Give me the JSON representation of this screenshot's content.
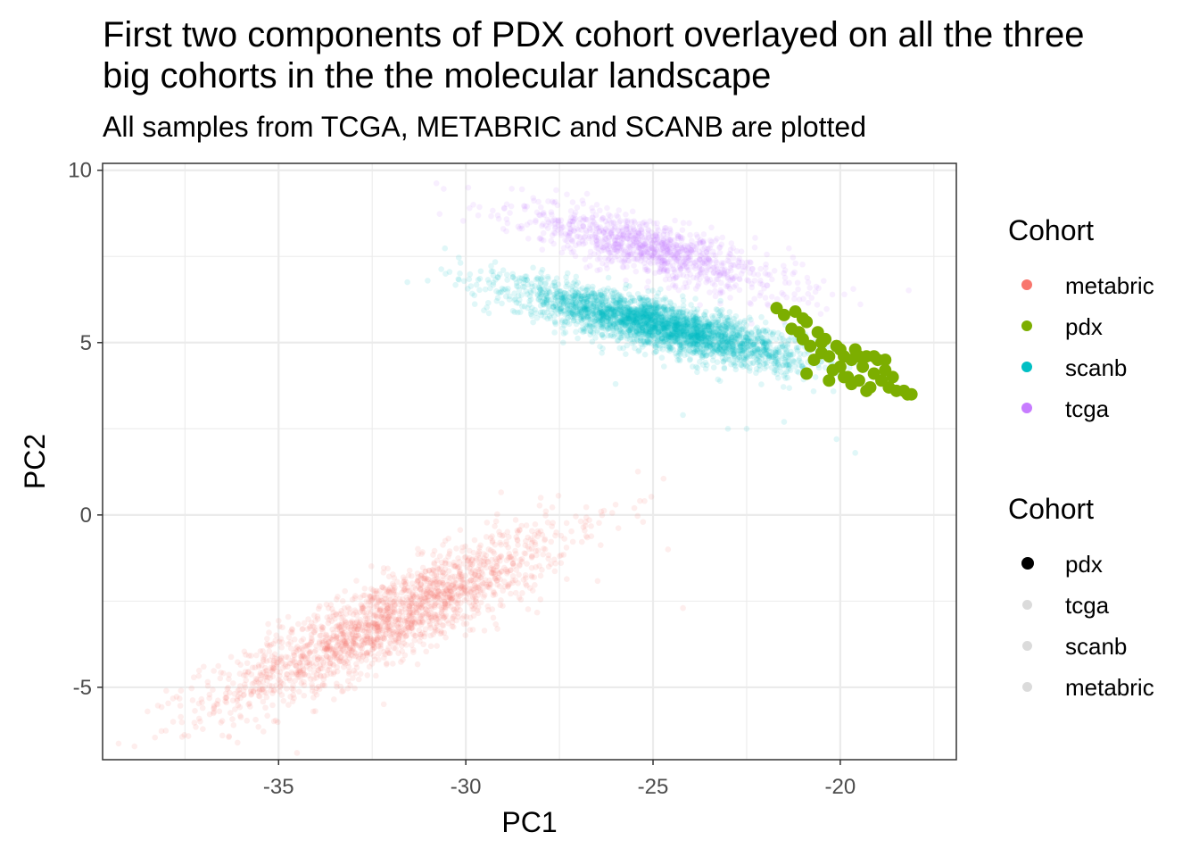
{
  "chart_data": {
    "type": "scatter",
    "title_lines": [
      "First two components of PDX cohort overlayed on all the three",
      "big cohorts in the the molecular landscape"
    ],
    "subtitle": "All samples from TCGA, METABRIC and SCANB are plotted",
    "xlabel": "PC1",
    "ylabel": "PC2",
    "xlim": [
      -39.7,
      -16.9
    ],
    "ylim": [
      -7.1,
      10.2
    ],
    "x_ticks": [
      -35,
      -30,
      -25,
      -20
    ],
    "y_ticks": [
      -5,
      0,
      5,
      10
    ],
    "grid": true,
    "theme": "bw",
    "legend_color": {
      "title": "Cohort",
      "entries": [
        {
          "label": "metabric",
          "color": "#F8766D"
        },
        {
          "label": "pdx",
          "color": "#7CAE00"
        },
        {
          "label": "scanb",
          "color": "#00BFC4"
        },
        {
          "label": "tcga",
          "color": "#C77CFF"
        }
      ]
    },
    "legend_alpha": {
      "title": "Cohort",
      "entries": [
        {
          "label": "pdx",
          "alpha": 1.0
        },
        {
          "label": "tcga",
          "alpha": 0.1
        },
        {
          "label": "scanb",
          "alpha": 0.1
        },
        {
          "label": "metabric",
          "alpha": 0.1
        }
      ]
    },
    "series": [
      {
        "name": "metabric",
        "color": "#F8766D",
        "alpha": 0.12,
        "size": "small",
        "cloud": {
          "n": 1900,
          "center": [
            -32.0,
            -3.0
          ],
          "sd_along": 2.6,
          "sd_across": 0.55,
          "direction": [
            1.0,
            0.52
          ]
        },
        "points": [
          [
            -38.5,
            -5.7
          ],
          [
            -37.0,
            -4.4
          ],
          [
            -36.5,
            -6.4
          ],
          [
            -38.0,
            -5.1
          ],
          [
            -26.0,
            0.3
          ],
          [
            -25.5,
            0.2
          ],
          [
            -24.6,
            -1.0
          ],
          [
            -24.2,
            -2.7
          ],
          [
            -28.0,
            0.5
          ],
          [
            -26.8,
            -0.2
          ]
        ]
      },
      {
        "name": "tcga",
        "color": "#C77CFF",
        "alpha": 0.12,
        "size": "small",
        "cloud": {
          "n": 1000,
          "center": [
            -25.0,
            7.7
          ],
          "sd_along": 1.9,
          "sd_across": 0.38,
          "direction": [
            1.0,
            -0.3
          ]
        },
        "points": [
          [
            -29.9,
            8.9
          ],
          [
            -29.8,
            9.0
          ],
          [
            -28.2,
            9.2
          ],
          [
            -27.3,
            9.3
          ],
          [
            -29.0,
            8.3
          ],
          [
            -27.8,
            9.1
          ],
          [
            -26.5,
            9.0
          ],
          [
            -21.5,
            5.6
          ],
          [
            -22.0,
            6.3
          ]
        ]
      },
      {
        "name": "scanb",
        "color": "#00BFC4",
        "alpha": 0.12,
        "size": "small",
        "cloud": {
          "n": 3000,
          "center": [
            -24.8,
            5.5
          ],
          "sd_along": 1.9,
          "sd_across": 0.33,
          "direction": [
            1.0,
            -0.26
          ]
        },
        "points": [
          [
            -29.0,
            7.1
          ],
          [
            -27.5,
            6.5
          ],
          [
            -28.3,
            6.1
          ],
          [
            -27.4,
            5.0
          ],
          [
            -26.0,
            3.8
          ],
          [
            -19.6,
            1.8
          ],
          [
            -20.1,
            2.2
          ],
          [
            -22.5,
            2.5
          ],
          [
            -23.0,
            2.5
          ],
          [
            -21.5,
            2.7
          ],
          [
            -24.2,
            2.9
          ]
        ]
      },
      {
        "name": "pdx",
        "color": "#7CAE00",
        "alpha": 1.0,
        "size": "large",
        "points": [
          [
            -21.7,
            6.0
          ],
          [
            -21.5,
            5.8
          ],
          [
            -21.2,
            5.9
          ],
          [
            -21.0,
            5.7
          ],
          [
            -21.3,
            5.4
          ],
          [
            -20.9,
            5.6
          ],
          [
            -21.0,
            5.1
          ],
          [
            -20.8,
            4.9
          ],
          [
            -20.6,
            5.3
          ],
          [
            -20.5,
            4.7
          ],
          [
            -20.4,
            5.1
          ],
          [
            -20.3,
            4.6
          ],
          [
            -20.2,
            4.2
          ],
          [
            -20.1,
            4.9
          ],
          [
            -20.0,
            4.3
          ],
          [
            -19.9,
            4.6
          ],
          [
            -19.8,
            4.0
          ],
          [
            -19.7,
            4.5
          ],
          [
            -19.6,
            4.8
          ],
          [
            -19.5,
            3.9
          ],
          [
            -19.4,
            4.3
          ],
          [
            -19.3,
            4.6
          ],
          [
            -19.2,
            3.7
          ],
          [
            -19.1,
            4.1
          ],
          [
            -19.0,
            4.5
          ],
          [
            -18.9,
            3.9
          ],
          [
            -18.8,
            4.2
          ],
          [
            -18.7,
            3.7
          ],
          [
            -18.6,
            4.0
          ],
          [
            -18.5,
            3.6
          ],
          [
            -18.3,
            3.6
          ],
          [
            -18.2,
            3.5
          ],
          [
            -18.1,
            3.5
          ],
          [
            -19.9,
            4.0
          ],
          [
            -20.7,
            4.5
          ],
          [
            -20.9,
            4.1
          ],
          [
            -20.3,
            3.9
          ],
          [
            -19.5,
            4.6
          ],
          [
            -19.1,
            4.6
          ],
          [
            -18.8,
            4.5
          ],
          [
            -19.3,
            3.6
          ],
          [
            -19.7,
            3.8
          ],
          [
            -20.5,
            5.0
          ],
          [
            -21.1,
            5.3
          ],
          [
            -20.0,
            4.8
          ]
        ]
      }
    ]
  }
}
